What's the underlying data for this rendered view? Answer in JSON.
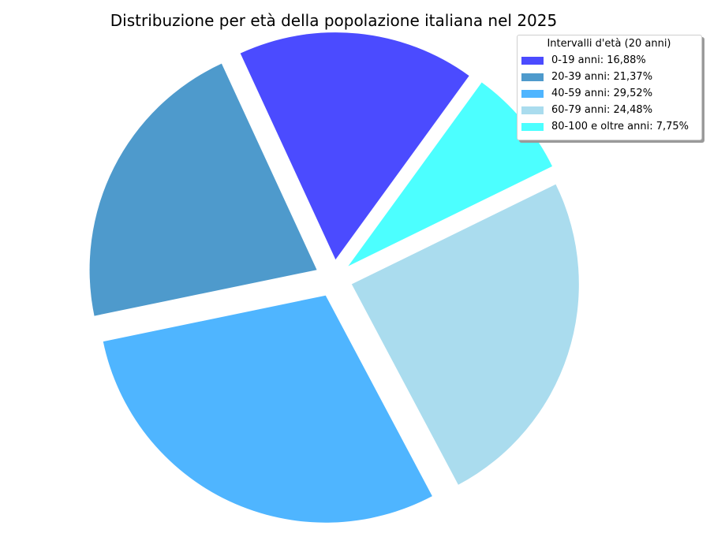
{
  "chart_data": {
    "type": "pie",
    "title": "Distribuzione per età della popolazione italiana nel 2025",
    "legend": {
      "title": "Intervalli d'età (20 anni)",
      "placement": "top-right"
    },
    "slices": [
      {
        "label": "0-19 anni: 16,88%",
        "value": 16.88,
        "color": "#4b4bff"
      },
      {
        "label": "20-39 anni: 21,37%",
        "value": 21.37,
        "color": "#4e9acc"
      },
      {
        "label": "40-59 anni: 29,52%",
        "value": 29.52,
        "color": "#4fb5ff"
      },
      {
        "label": "60-79 anni: 24,48%",
        "value": 24.48,
        "color": "#aadcee"
      },
      {
        "label": "80-100 e oltre anni: 7,75%",
        "value": 7.75,
        "color": "#4cffff"
      }
    ],
    "start_angle_deg": 54,
    "direction": "counterclockwise",
    "exploded": true
  }
}
